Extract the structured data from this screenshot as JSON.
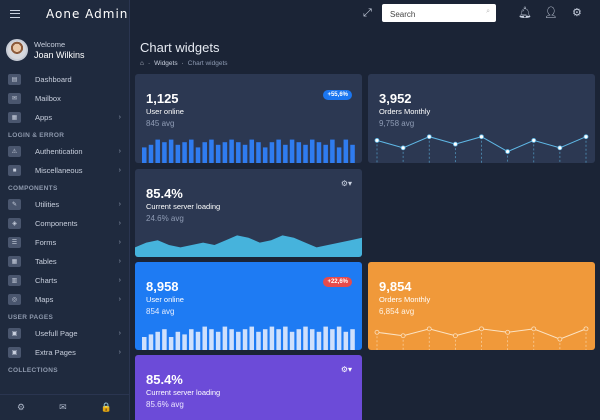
{
  "brand": "Aone Admin",
  "user": {
    "welcome": "Welcome",
    "name": "Joan Wilkins"
  },
  "nav": [
    {
      "kind": "item",
      "label": "Dashboard",
      "icon": "dashboard-icon",
      "glyph": "▤",
      "chevron": false
    },
    {
      "kind": "item",
      "label": "Mailbox",
      "icon": "mail-icon",
      "glyph": "✉",
      "chevron": false
    },
    {
      "kind": "item",
      "label": "Apps",
      "icon": "apps-icon",
      "glyph": "▦",
      "chevron": true
    },
    {
      "kind": "section",
      "label": "LOGIN & ERROR"
    },
    {
      "kind": "item",
      "label": "Authentication",
      "icon": "warning-icon",
      "glyph": "⚠",
      "chevron": true
    },
    {
      "kind": "item",
      "label": "Miscellaneous",
      "icon": "lock-icon",
      "glyph": "■",
      "chevron": true
    },
    {
      "kind": "section",
      "label": "COMPONENTS"
    },
    {
      "kind": "item",
      "label": "Utilities",
      "icon": "edit-icon",
      "glyph": "✎",
      "chevron": true
    },
    {
      "kind": "item",
      "label": "Components",
      "icon": "shield-icon",
      "glyph": "◈",
      "chevron": true
    },
    {
      "kind": "item",
      "label": "Forms",
      "icon": "form-icon",
      "glyph": "☰",
      "chevron": true
    },
    {
      "kind": "item",
      "label": "Tables",
      "icon": "table-icon",
      "glyph": "▦",
      "chevron": true
    },
    {
      "kind": "item",
      "label": "Charts",
      "icon": "chart-icon",
      "glyph": "▥",
      "chevron": true
    },
    {
      "kind": "item",
      "label": "Maps",
      "icon": "map-icon",
      "glyph": "◎",
      "chevron": true
    },
    {
      "kind": "section",
      "label": "USER PAGES"
    },
    {
      "kind": "item",
      "label": "Usefull Page",
      "icon": "page-icon",
      "glyph": "▣",
      "chevron": true
    },
    {
      "kind": "item",
      "label": "Extra Pages",
      "icon": "pages-icon",
      "glyph": "▣",
      "chevron": true
    },
    {
      "kind": "section",
      "label": "COLLECTIONS"
    }
  ],
  "sidebar_footer": [
    {
      "name": "settings-icon",
      "glyph": "⚙"
    },
    {
      "name": "mail-icon",
      "glyph": "✉"
    },
    {
      "name": "lock-icon",
      "glyph": "🔒"
    }
  ],
  "topbar": {
    "search_placeholder": "Search",
    "icons": [
      "expand-icon",
      "search-icon",
      "bell-icon",
      "user-icon",
      "gear-icon"
    ]
  },
  "page": {
    "title": "Chart widgets",
    "breadcrumb": [
      "⌂",
      "Widgets",
      "Chart widgets"
    ]
  },
  "colors": {
    "card_dark": "#2c3852",
    "blue": "#1e7bf3",
    "orange": "#f0993a",
    "purple": "#6c4bd8",
    "teal": "#46b3dc",
    "badge_blue": "#1b76f0",
    "badge_red": "#e64b4b"
  },
  "widgets": {
    "w1": {
      "value": "1,125",
      "label": "User online",
      "avg": "845 avg",
      "badge": "+55,6%"
    },
    "w2": {
      "value": "3,952",
      "label": "Orders Monthly",
      "avg": "9,758 avg"
    },
    "w3": {
      "value": "85.4%",
      "label": "Current server loading",
      "avg": "24.6% avg"
    },
    "w4": {
      "value": "8,958",
      "label": "User online",
      "avg": "854 avg",
      "badge": "+22,6%"
    },
    "w5": {
      "value": "9,854",
      "label": "Orders Monthly",
      "avg": "6,854 avg"
    },
    "w6": {
      "value": "85.4%",
      "label": "Current server loading",
      "avg": "85.6% avg"
    }
  },
  "chart_data": [
    {
      "type": "bar",
      "id": "user-online-1",
      "values": [
        6,
        7,
        9,
        8,
        9,
        7,
        8,
        9,
        6,
        8,
        9,
        7,
        8,
        9,
        8,
        7,
        9,
        8,
        6,
        8,
        9,
        7,
        9,
        8,
        7,
        9,
        8,
        7,
        9,
        6,
        9,
        7
      ]
    },
    {
      "type": "line",
      "id": "orders-monthly-1",
      "values": [
        5,
        3,
        6,
        4,
        6,
        2,
        5,
        3,
        6
      ]
    },
    {
      "type": "area",
      "id": "server-loading-1",
      "values": [
        4,
        6,
        7,
        5,
        4,
        5,
        6,
        5,
        7,
        9,
        8,
        6,
        7,
        9,
        8,
        6,
        4,
        5,
        6,
        7,
        8
      ]
    },
    {
      "type": "bar",
      "id": "user-online-2",
      "values": [
        5,
        6,
        7,
        8,
        5,
        7,
        6,
        8,
        7,
        9,
        8,
        7,
        9,
        8,
        7,
        8,
        9,
        7,
        8,
        9,
        8,
        9,
        7,
        8,
        9,
        8,
        7,
        9,
        8,
        9,
        7,
        8
      ]
    },
    {
      "type": "line",
      "id": "orders-monthly-2",
      "values": [
        4,
        3,
        5,
        3,
        5,
        4,
        5,
        2,
        5
      ]
    }
  ]
}
